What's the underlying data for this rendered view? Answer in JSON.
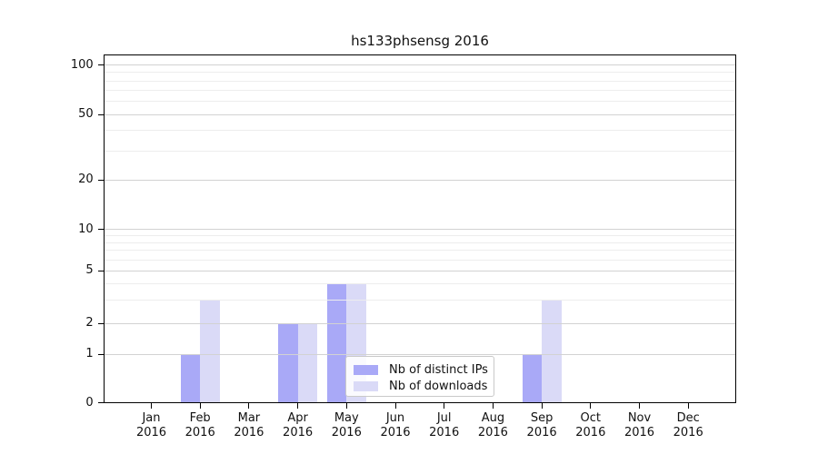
{
  "title": "hs133phsensg 2016",
  "chart_data": {
    "type": "bar",
    "title": "hs133phsensg 2016",
    "categories": [
      {
        "month": "Jan",
        "year": "2016"
      },
      {
        "month": "Feb",
        "year": "2016"
      },
      {
        "month": "Mar",
        "year": "2016"
      },
      {
        "month": "Apr",
        "year": "2016"
      },
      {
        "month": "May",
        "year": "2016"
      },
      {
        "month": "Jun",
        "year": "2016"
      },
      {
        "month": "Jul",
        "year": "2016"
      },
      {
        "month": "Aug",
        "year": "2016"
      },
      {
        "month": "Sep",
        "year": "2016"
      },
      {
        "month": "Oct",
        "year": "2016"
      },
      {
        "month": "Nov",
        "year": "2016"
      },
      {
        "month": "Dec",
        "year": "2016"
      }
    ],
    "series": [
      {
        "name": "Nb of distinct IPs",
        "color": "#a9a9f7",
        "values": [
          0,
          1,
          0,
          2,
          4,
          0,
          0,
          0,
          1,
          0,
          0,
          0
        ]
      },
      {
        "name": "Nb of downloads",
        "color": "#dadaf7",
        "values": [
          0,
          3,
          0,
          2,
          4,
          0,
          0,
          0,
          3,
          0,
          0,
          0
        ]
      }
    ],
    "yscale": "log-like with 0 baseline",
    "y_major_ticks": [
      0,
      1,
      2,
      5,
      10,
      20,
      50,
      100
    ],
    "y_minor_ticks": [
      3,
      4,
      6,
      7,
      8,
      9,
      30,
      40,
      60,
      70,
      80,
      90
    ],
    "ylim": [
      0,
      115
    ],
    "grid": true,
    "legend_position": "lower center",
    "colors": {
      "major_grid": "#d2d2d2",
      "minor_grid": "#ededed",
      "axis": "#000000"
    }
  }
}
